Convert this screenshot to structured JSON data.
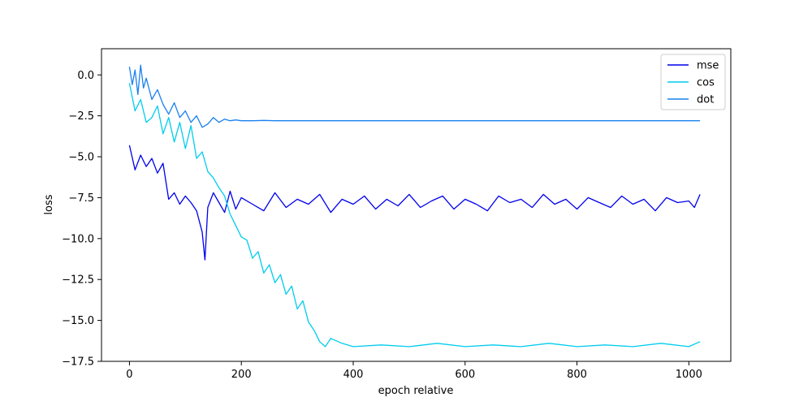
{
  "chart_data": {
    "type": "line",
    "title": "",
    "xlabel": "epoch relative",
    "ylabel": "loss",
    "xlim": [
      -50,
      1075
    ],
    "ylim": [
      -17.5,
      1.6
    ],
    "xticks": [
      0,
      200,
      400,
      600,
      800,
      1000
    ],
    "yticks": [
      0.0,
      -2.5,
      -5.0,
      -7.5,
      -10.0,
      -12.5,
      -15.0,
      -17.5
    ],
    "xtick_labels": [
      "0",
      "200",
      "400",
      "600",
      "800",
      "1000"
    ],
    "ytick_labels": [
      "0.0",
      "−2.5",
      "−5.0",
      "−7.5",
      "−10.0",
      "−12.5",
      "−15.0",
      "−17.5"
    ],
    "grid": false,
    "legend_position": "top-right",
    "series": [
      {
        "name": "mse",
        "color": "#0000ee",
        "x": [
          0,
          10,
          20,
          30,
          40,
          50,
          60,
          70,
          80,
          90,
          100,
          110,
          120,
          130,
          135,
          140,
          150,
          160,
          170,
          180,
          190,
          200,
          220,
          240,
          260,
          280,
          300,
          320,
          340,
          360,
          380,
          400,
          420,
          440,
          460,
          480,
          500,
          520,
          540,
          560,
          580,
          600,
          620,
          640,
          660,
          680,
          700,
          720,
          740,
          760,
          780,
          800,
          820,
          840,
          860,
          880,
          900,
          920,
          940,
          960,
          980,
          1000,
          1010,
          1020
        ],
        "y": [
          -4.3,
          -5.8,
          -4.9,
          -5.6,
          -5.1,
          -6.0,
          -5.4,
          -7.6,
          -7.2,
          -7.9,
          -7.4,
          -7.8,
          -8.3,
          -9.6,
          -11.3,
          -8.1,
          -7.2,
          -7.8,
          -8.4,
          -7.1,
          -8.2,
          -7.5,
          -7.9,
          -8.3,
          -7.2,
          -8.1,
          -7.6,
          -7.9,
          -7.3,
          -8.4,
          -7.6,
          -7.9,
          -7.4,
          -8.2,
          -7.6,
          -8.0,
          -7.3,
          -8.1,
          -7.7,
          -7.4,
          -8.2,
          -7.6,
          -7.9,
          -8.3,
          -7.4,
          -7.8,
          -7.6,
          -8.1,
          -7.3,
          -7.9,
          -7.6,
          -8.2,
          -7.5,
          -7.8,
          -8.1,
          -7.4,
          -7.9,
          -7.6,
          -8.3,
          -7.5,
          -7.8,
          -7.7,
          -8.1,
          -7.3
        ]
      },
      {
        "name": "cos",
        "color": "#00ccee",
        "x": [
          0,
          10,
          20,
          30,
          40,
          50,
          60,
          70,
          80,
          90,
          100,
          110,
          120,
          130,
          140,
          150,
          160,
          170,
          180,
          190,
          200,
          210,
          220,
          230,
          240,
          250,
          260,
          270,
          280,
          290,
          300,
          310,
          320,
          330,
          340,
          350,
          360,
          380,
          400,
          450,
          500,
          550,
          600,
          650,
          700,
          750,
          800,
          850,
          900,
          950,
          1000,
          1020
        ],
        "y": [
          -0.5,
          -2.2,
          -1.5,
          -2.9,
          -2.6,
          -1.9,
          -3.6,
          -2.6,
          -4.1,
          -2.9,
          -4.5,
          -3.1,
          -5.1,
          -4.7,
          -5.9,
          -6.3,
          -6.9,
          -7.4,
          -8.5,
          -9.2,
          -9.9,
          -10.1,
          -11.2,
          -10.8,
          -12.1,
          -11.6,
          -12.7,
          -12.2,
          -13.4,
          -12.9,
          -14.3,
          -13.8,
          -15.1,
          -15.6,
          -16.3,
          -16.6,
          -16.1,
          -16.4,
          -16.6,
          -16.5,
          -16.6,
          -16.4,
          -16.6,
          -16.5,
          -16.6,
          -16.4,
          -16.6,
          -16.5,
          -16.6,
          -16.4,
          -16.6,
          -16.3
        ]
      },
      {
        "name": "dot",
        "color": "#1a80ee",
        "x": [
          0,
          5,
          10,
          15,
          20,
          25,
          30,
          40,
          50,
          60,
          70,
          80,
          90,
          100,
          110,
          120,
          130,
          140,
          150,
          160,
          170,
          180,
          190,
          200,
          220,
          240,
          260,
          280,
          300,
          400,
          500,
          600,
          700,
          800,
          900,
          1000,
          1020
        ],
        "y": [
          0.5,
          -0.6,
          0.3,
          -1.2,
          0.6,
          -0.8,
          -0.2,
          -1.5,
          -0.9,
          -1.8,
          -2.4,
          -1.7,
          -2.6,
          -2.2,
          -2.9,
          -2.5,
          -3.2,
          -3.0,
          -2.6,
          -2.9,
          -2.7,
          -2.8,
          -2.75,
          -2.8,
          -2.8,
          -2.78,
          -2.8,
          -2.8,
          -2.8,
          -2.8,
          -2.8,
          -2.8,
          -2.8,
          -2.8,
          -2.8,
          -2.8,
          -2.8
        ]
      }
    ]
  }
}
